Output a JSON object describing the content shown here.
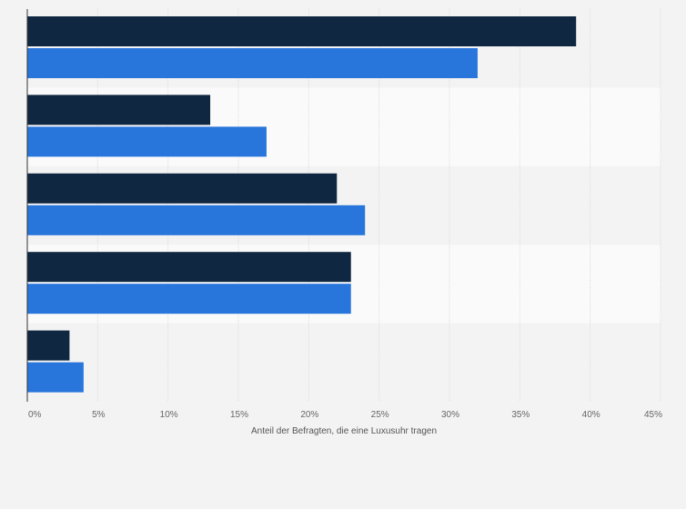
{
  "colors": {
    "page_background": "#f3f3f3",
    "band_light": "#fafafa",
    "band_dark": "#f3f3f3",
    "gridline": "#dddddd",
    "axis_line": "#333333",
    "series_dark": "#0f2740",
    "series_blue": "#2875dc"
  },
  "chart_data": {
    "type": "bar",
    "orientation": "horizontal",
    "categories": [
      "",
      "",
      "",
      "",
      ""
    ],
    "series": [
      {
        "values": [
          39,
          13,
          22,
          23,
          3
        ]
      },
      {
        "values": [
          32,
          17,
          24,
          23,
          4
        ]
      }
    ],
    "title": "",
    "xlabel": "Anteil der Befragten, die eine Luxusuhr tragen",
    "ylabel": "",
    "xlim": [
      0,
      45
    ],
    "xticks": [
      0,
      5,
      10,
      15,
      20,
      25,
      30,
      35,
      40,
      45
    ],
    "tick_labels": [
      "0%",
      "5%",
      "10%",
      "15%",
      "20%",
      "25%",
      "30%",
      "35%",
      "40%",
      "45%"
    ],
    "grid": true,
    "legend": "none"
  }
}
